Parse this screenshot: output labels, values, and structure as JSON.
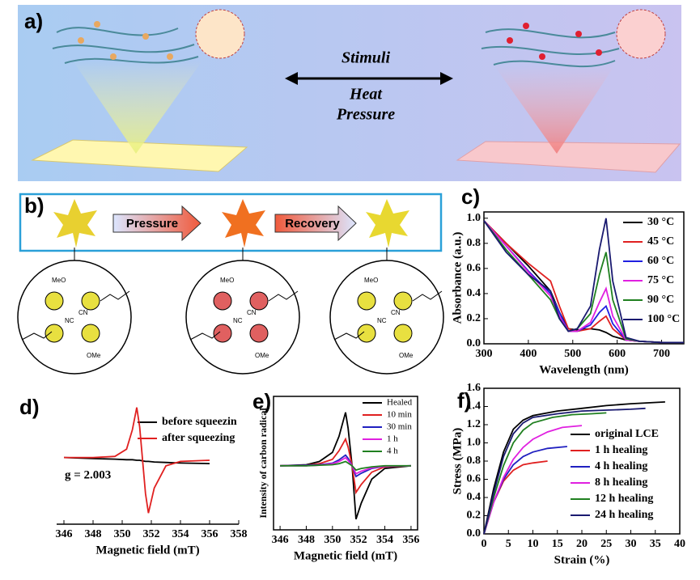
{
  "panel_a": {
    "label": "a)",
    "texts": [
      "Stimuli",
      "Heat",
      "Pressure"
    ]
  },
  "panel_b": {
    "label": "b)",
    "arrows": [
      "Pressure",
      "Recovery"
    ],
    "molecule_labels": [
      "MeO",
      "CN",
      "NC",
      "OMe"
    ]
  },
  "chart_data": [
    {
      "type": "line",
      "label": "c)",
      "xlabel": "Wavelength (nm)",
      "ylabel": "Absorbance (a.u.)",
      "legend": "upper right",
      "xlim": [
        300,
        750
      ],
      "xticks": [
        300,
        400,
        500,
        600,
        700
      ],
      "ylim": [
        0,
        1.05
      ],
      "yticks": [
        {
          "value": 0,
          "label": "0.0"
        },
        0.2,
        0.4,
        0.6,
        0.8,
        {
          "value": 1,
          "label": "1.0"
        }
      ],
      "x": [
        300,
        350,
        400,
        450,
        470,
        490,
        510,
        540,
        560,
        575,
        590,
        620,
        650,
        700,
        750
      ],
      "series": [
        {
          "name": "30 °C",
          "color": "#000000",
          "values": [
            0.98,
            0.8,
            0.62,
            0.42,
            0.25,
            0.12,
            0.11,
            0.12,
            0.11,
            0.09,
            0.06,
            0.03,
            0.02,
            0.01,
            0.01
          ]
        },
        {
          "name": "45 °C",
          "color": "#e02020",
          "values": [
            0.98,
            0.8,
            0.64,
            0.5,
            0.3,
            0.12,
            0.1,
            0.12,
            0.18,
            0.22,
            0.12,
            0.03,
            0.02,
            0.01,
            0.01
          ]
        },
        {
          "name": "60 °C",
          "color": "#2020e0",
          "values": [
            0.98,
            0.78,
            0.58,
            0.4,
            0.25,
            0.1,
            0.1,
            0.15,
            0.25,
            0.3,
            0.16,
            0.03,
            0.02,
            0.01,
            0.01
          ]
        },
        {
          "name": "75 °C",
          "color": "#e020e0",
          "values": [
            0.98,
            0.78,
            0.57,
            0.38,
            0.22,
            0.1,
            0.1,
            0.17,
            0.33,
            0.44,
            0.22,
            0.03,
            0.02,
            0.01,
            0.01
          ]
        },
        {
          "name": "90 °C",
          "color": "#208020",
          "values": [
            0.98,
            0.75,
            0.55,
            0.35,
            0.2,
            0.1,
            0.12,
            0.24,
            0.55,
            0.73,
            0.35,
            0.04,
            0.02,
            0.01,
            0.01
          ]
        },
        {
          "name": "100 °C",
          "color": "#1a1a70",
          "values": [
            0.98,
            0.73,
            0.55,
            0.42,
            0.2,
            0.1,
            0.12,
            0.3,
            0.75,
            1.0,
            0.5,
            0.05,
            0.02,
            0.01,
            0.01
          ]
        }
      ]
    },
    {
      "type": "line",
      "label": "d)",
      "xlabel": "Magnetic field (mT)",
      "legend": "upper right",
      "annotation": "g = 2.003",
      "xlim": [
        345.5,
        358
      ],
      "xticks": [
        346,
        348,
        350,
        352,
        354,
        356,
        358
      ],
      "ylim": [
        -1.15,
        1.15
      ],
      "x": [
        346,
        348,
        349.5,
        350.3,
        350.7,
        351,
        351.2,
        351.4,
        351.6,
        351.8,
        352.2,
        353,
        354,
        356
      ],
      "series": [
        {
          "name": "before squeezin",
          "color": "#000000",
          "values": [
            0.05,
            0.03,
            0.02,
            0.01,
            0.01,
            0,
            0,
            -0.01,
            -0.02,
            -0.02,
            -0.03,
            -0.04,
            -0.05,
            -0.06
          ]
        },
        {
          "name": "after squeezing",
          "color": "#e02020",
          "values": [
            0.05,
            0.05,
            0.07,
            0.2,
            0.55,
            0.95,
            0.6,
            0,
            -0.6,
            -0.95,
            -0.5,
            -0.1,
            -0.02,
            0
          ]
        }
      ]
    },
    {
      "type": "line",
      "label": "e)",
      "xlabel": "Magnetic field (mT)",
      "ylabel": "Intensity of carbon radical",
      "legend": "upper right",
      "xlim": [
        345.5,
        356.5
      ],
      "xticks": [
        346,
        348,
        350,
        352,
        354,
        356
      ],
      "ylim": [
        -1.2,
        1.3
      ],
      "x": [
        346,
        348,
        349,
        350,
        350.5,
        351,
        351.2,
        351.5,
        351.8,
        352.2,
        353,
        354,
        356
      ],
      "series": [
        {
          "name": "Healed",
          "color": "#000000",
          "values": [
            0,
            0.02,
            0.08,
            0.25,
            0.55,
            1.0,
            0.7,
            0,
            -1.0,
            -0.7,
            -0.25,
            -0.05,
            0
          ]
        },
        {
          "name": "10 min",
          "color": "#e02020",
          "values": [
            0,
            0.01,
            0.04,
            0.12,
            0.28,
            0.5,
            0.35,
            0,
            -0.5,
            -0.35,
            -0.12,
            -0.02,
            0
          ]
        },
        {
          "name": "30 min",
          "color": "#2020c0",
          "values": [
            0,
            0.01,
            0.02,
            0.05,
            0.11,
            0.2,
            0.14,
            0,
            -0.2,
            -0.14,
            -0.05,
            -0.01,
            0
          ]
        },
        {
          "name": "1 h",
          "color": "#e020e0",
          "values": [
            0,
            0,
            0.01,
            0.04,
            0.08,
            0.15,
            0.1,
            0,
            -0.15,
            -0.1,
            -0.04,
            -0.01,
            0
          ]
        },
        {
          "name": "4 h",
          "color": "#208020",
          "values": [
            0,
            0,
            0.01,
            0.02,
            0.04,
            0.08,
            0.05,
            0,
            -0.08,
            -0.05,
            -0.02,
            0,
            0
          ]
        }
      ]
    },
    {
      "type": "line",
      "label": "f)",
      "xlabel": "Strain (%)",
      "ylabel": "Stress (MPa)",
      "legend": "lower right",
      "xlim": [
        0,
        40
      ],
      "xticks": [
        0,
        5,
        10,
        15,
        20,
        25,
        30,
        35,
        40
      ],
      "ylim": [
        0,
        1.6
      ],
      "yticks": [
        {
          "value": 0,
          "label": "0.0"
        },
        0.2,
        0.4,
        0.6,
        0.8,
        {
          "value": 1,
          "label": "1.0"
        },
        1.2,
        1.4,
        1.6
      ],
      "series": [
        {
          "name": "original LCE",
          "color": "#000000",
          "x": [
            0,
            2,
            4,
            6,
            8,
            10,
            15,
            20,
            25,
            30,
            37
          ],
          "values": [
            0,
            0.5,
            0.9,
            1.15,
            1.25,
            1.3,
            1.35,
            1.38,
            1.41,
            1.43,
            1.45
          ]
        },
        {
          "name": "1 h healing",
          "color": "#e02020",
          "x": [
            0,
            2,
            4,
            6,
            8,
            10,
            13
          ],
          "values": [
            0,
            0.35,
            0.58,
            0.7,
            0.76,
            0.78,
            0.8
          ]
        },
        {
          "name": "4 h healing",
          "color": "#2020c0",
          "x": [
            0,
            2,
            4,
            6,
            8,
            10,
            13,
            17
          ],
          "values": [
            0,
            0.35,
            0.6,
            0.76,
            0.85,
            0.9,
            0.94,
            0.96
          ]
        },
        {
          "name": "8 h healing",
          "color": "#e020e0",
          "x": [
            0,
            2,
            4,
            6,
            8,
            10,
            13,
            16,
            20
          ],
          "values": [
            0,
            0.35,
            0.62,
            0.82,
            0.95,
            1.04,
            1.12,
            1.17,
            1.19
          ]
        },
        {
          "name": "12 h healing",
          "color": "#208020",
          "x": [
            0,
            2,
            4,
            6,
            8,
            10,
            14,
            18,
            22,
            25
          ],
          "values": [
            0,
            0.4,
            0.75,
            1.0,
            1.14,
            1.22,
            1.28,
            1.31,
            1.32,
            1.33
          ]
        },
        {
          "name": "24 h healing",
          "color": "#1a1a70",
          "x": [
            0,
            2,
            4,
            6,
            8,
            10,
            15,
            20,
            25,
            30,
            33
          ],
          "values": [
            0,
            0.45,
            0.85,
            1.1,
            1.22,
            1.28,
            1.32,
            1.35,
            1.36,
            1.37,
            1.38
          ]
        }
      ]
    }
  ]
}
